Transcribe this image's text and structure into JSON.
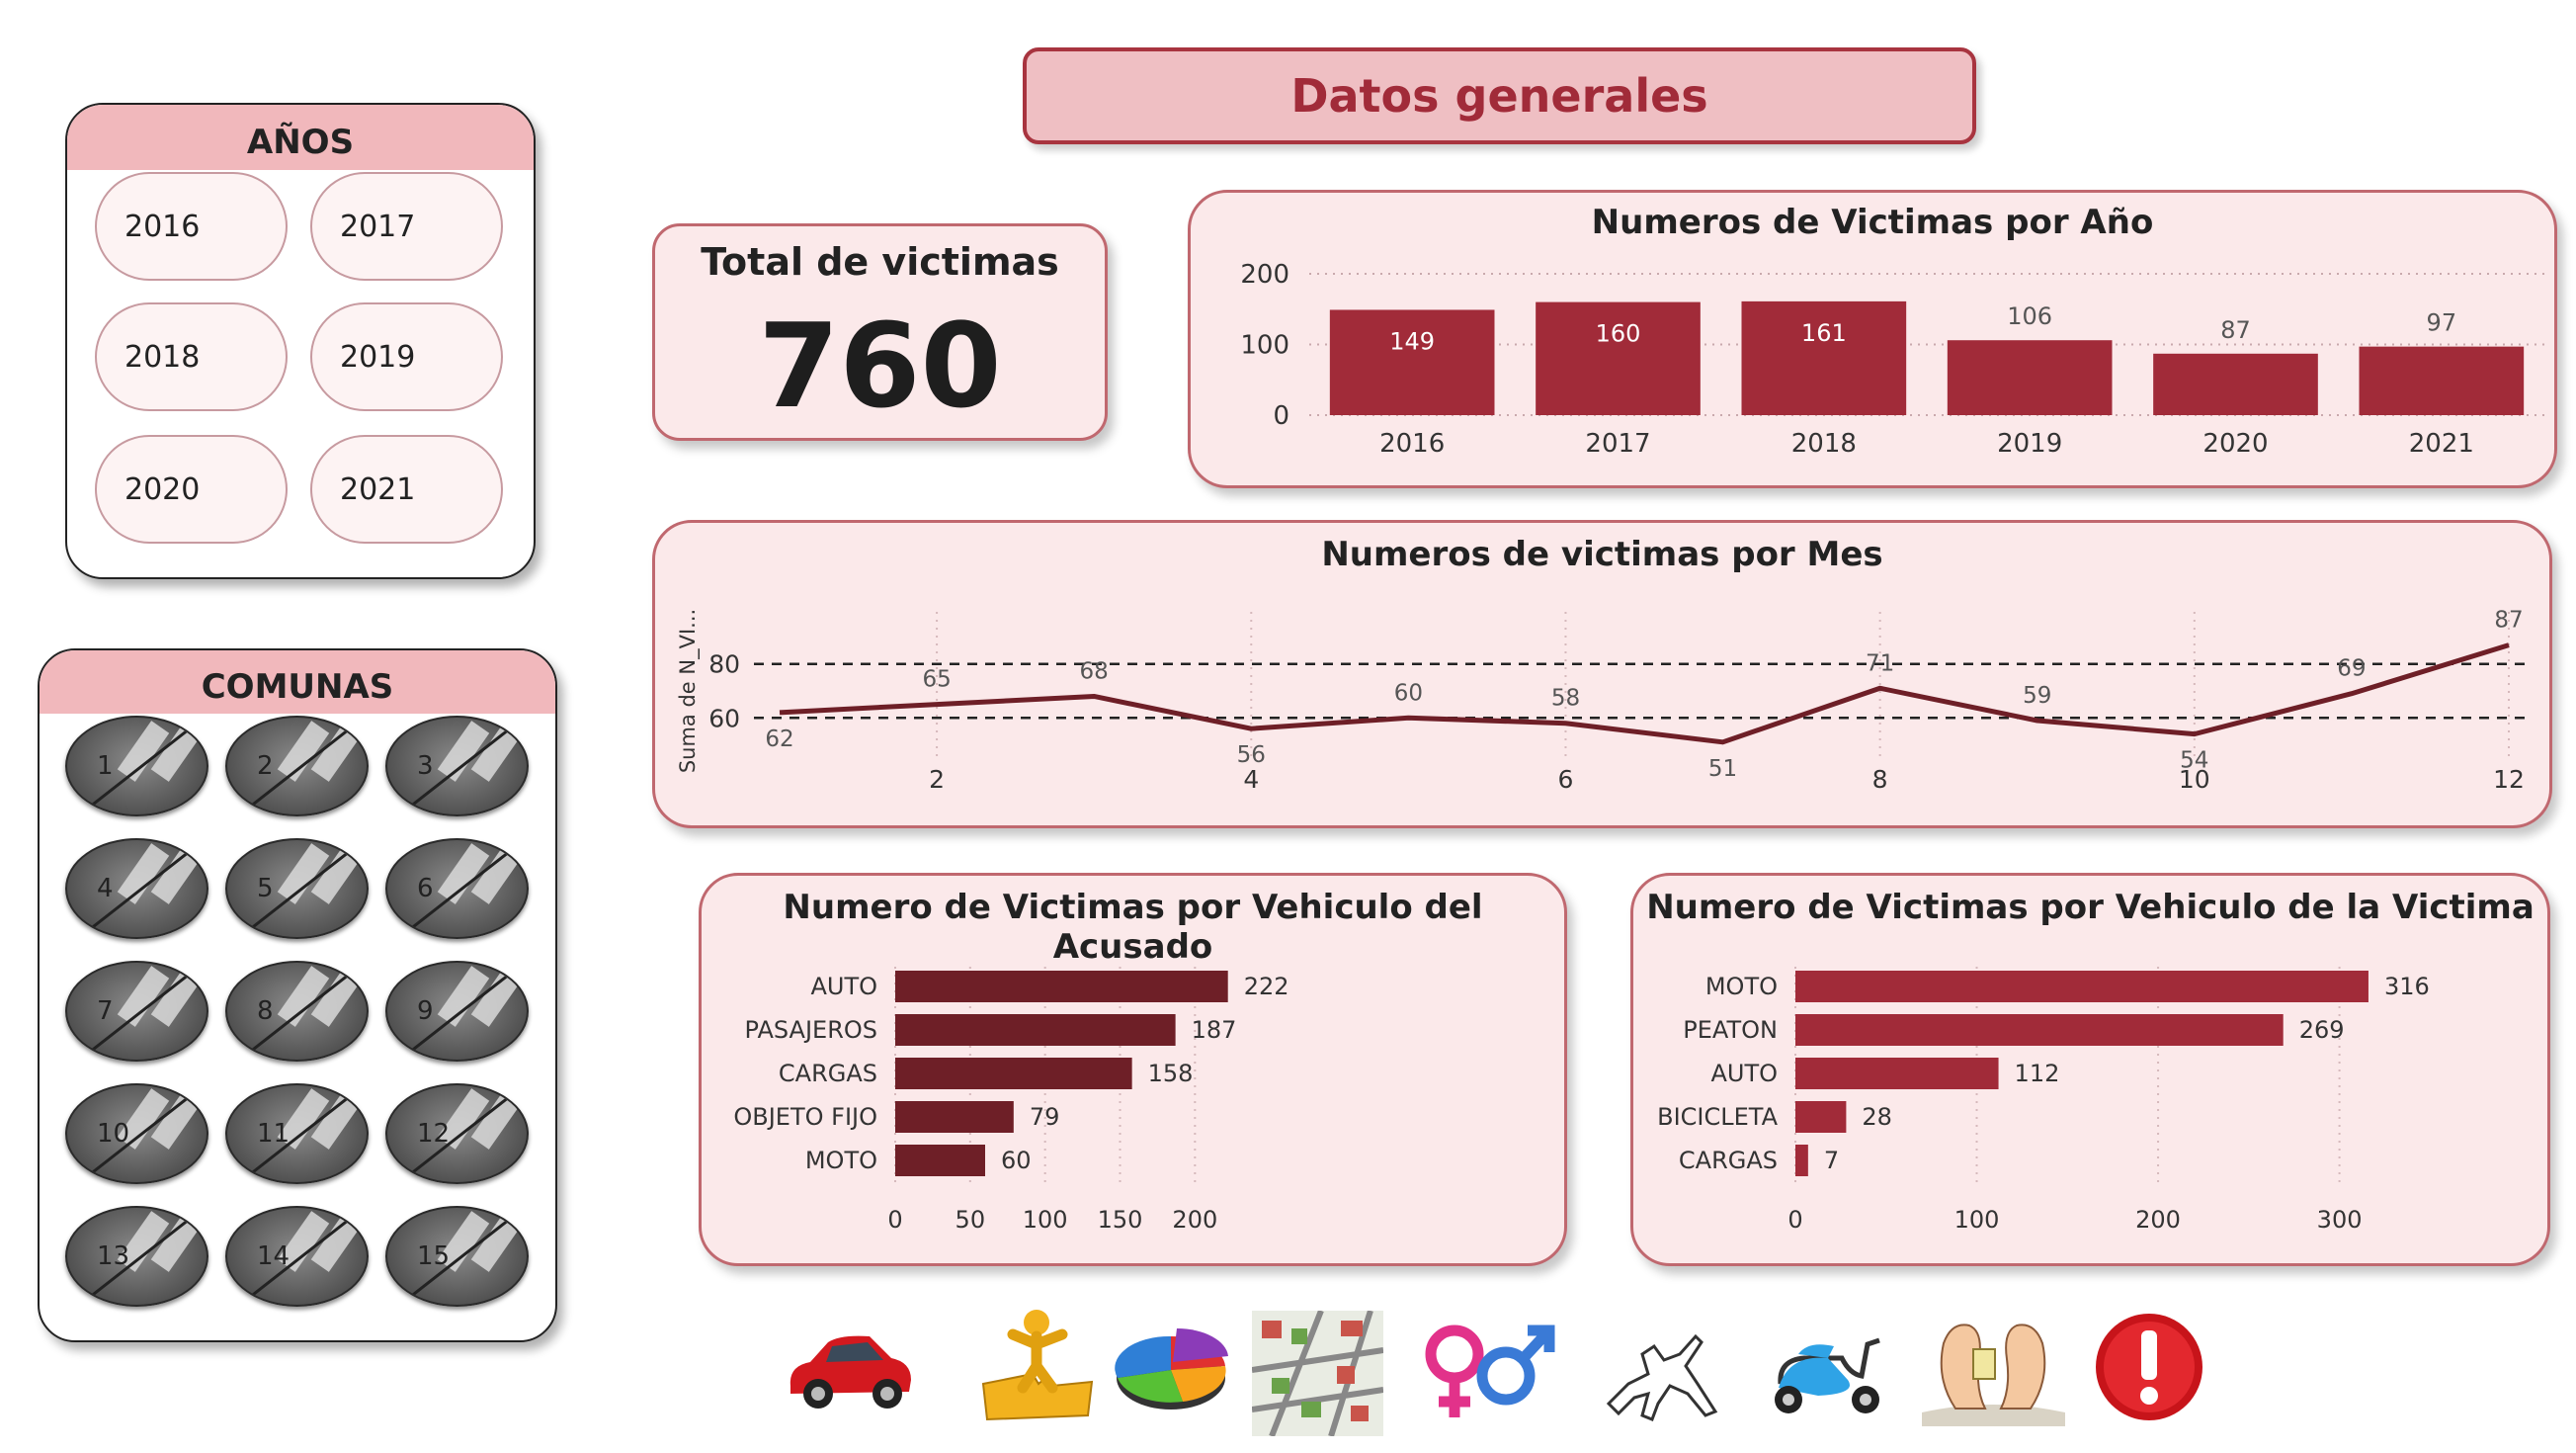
{
  "header": {
    "title": "Datos generales"
  },
  "years_panel": {
    "title": "AÑOS",
    "items": [
      "2016",
      "2017",
      "2018",
      "2019",
      "2020",
      "2021"
    ]
  },
  "comunas_panel": {
    "title": "COMUNAS",
    "items": [
      "1",
      "2",
      "3",
      "4",
      "5",
      "6",
      "7",
      "8",
      "9",
      "10",
      "11",
      "12",
      "13",
      "14",
      "15"
    ]
  },
  "kpi": {
    "label": "Total de victimas",
    "value": "760"
  },
  "colors": {
    "bar": "#a12b39",
    "bar_dark": "#6e1f27",
    "card_bg": "#fbe9ea",
    "header_band": "#f1b8bc"
  },
  "chart_data": [
    {
      "type": "bar",
      "title": "Numeros de Victimas por Año",
      "categories": [
        "2016",
        "2017",
        "2018",
        "2019",
        "2020",
        "2021"
      ],
      "values": [
        149,
        160,
        161,
        106,
        87,
        97
      ],
      "ylim": [
        0,
        200
      ],
      "yticks": [
        "0",
        "100",
        "200"
      ],
      "grid": true
    },
    {
      "type": "line",
      "title": "Numeros de victimas por Mes",
      "ylabel": "Suma de N_VI...",
      "x": [
        1,
        2,
        3,
        4,
        5,
        6,
        7,
        8,
        9,
        10,
        11,
        12
      ],
      "values": [
        62,
        65,
        68,
        56,
        60,
        58,
        51,
        71,
        59,
        54,
        69,
        87
      ],
      "xticks": [
        "2",
        "4",
        "6",
        "8",
        "10",
        "12"
      ],
      "yticks": [
        "60",
        "80"
      ],
      "reference_lines": [
        60,
        80
      ],
      "ylim": [
        48,
        92
      ]
    },
    {
      "type": "bar",
      "orientation": "horizontal",
      "title": "Numero de Victimas por Vehiculo del Acusado",
      "categories": [
        "AUTO",
        "PASAJEROS",
        "CARGAS",
        "OBJETO FIJO",
        "MOTO"
      ],
      "values": [
        222,
        187,
        158,
        79,
        60
      ],
      "xlim": [
        0,
        240
      ],
      "xticks": [
        "0",
        "50",
        "100",
        "150",
        "200"
      ]
    },
    {
      "type": "bar",
      "orientation": "horizontal",
      "title": "Numero de Victimas por Vehiculo de la Victima",
      "categories": [
        "MOTO",
        "PEATON",
        "AUTO",
        "BICICLETA",
        "CARGAS"
      ],
      "values": [
        316,
        269,
        112,
        28,
        7
      ],
      "xlim": [
        0,
        340
      ],
      "xticks": [
        "0",
        "100",
        "200",
        "300"
      ]
    }
  ],
  "nav_icons": [
    "car-icon",
    "puzzle-person-icon",
    "pie-chart-icon",
    "map-city-icon",
    "gender-icon",
    "body-outline-icon",
    "scooter-icon",
    "feet-tag-icon",
    "alert-icon"
  ]
}
